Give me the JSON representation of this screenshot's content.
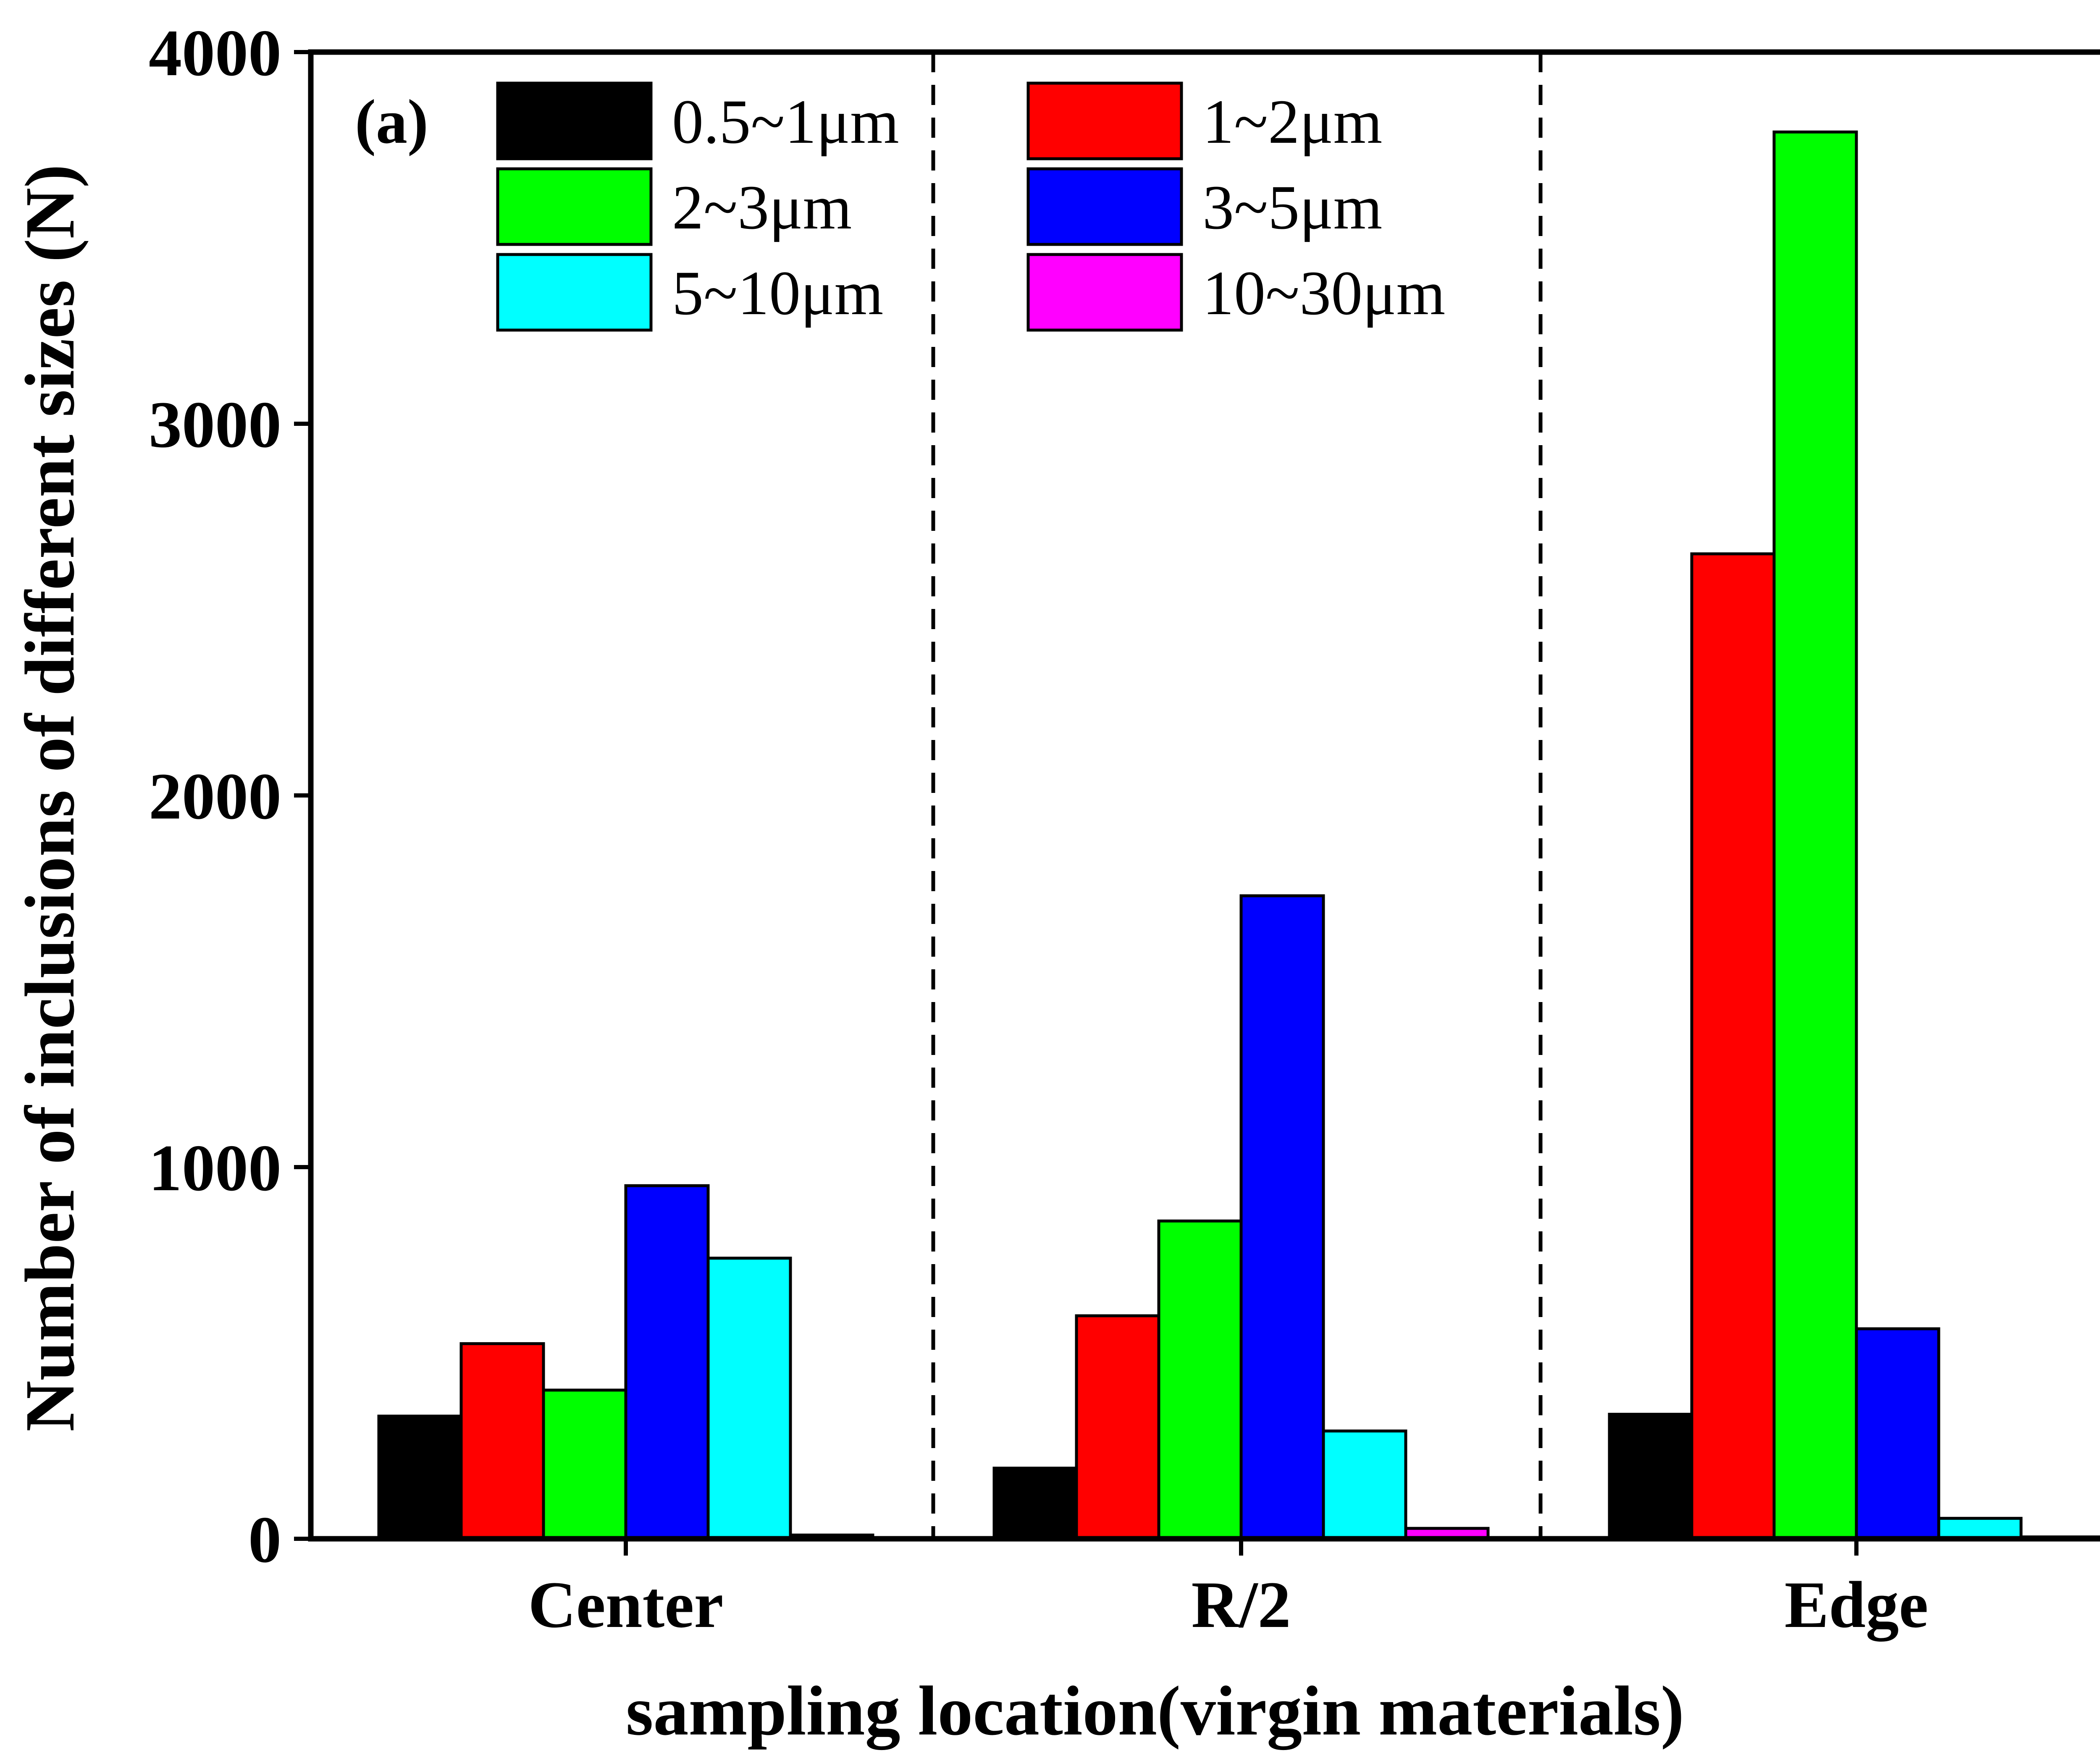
{
  "chart_data": {
    "type": "bar",
    "panel_label": "(a)",
    "xlabel": "sampling location(virgin materials)",
    "ylabel": "Number of inclusions of different sizes (N)",
    "ylim": [
      0,
      4000
    ],
    "yticks": [
      "0",
      "1000",
      "2000",
      "3000",
      "4000"
    ],
    "categories": [
      "Center",
      "R/2",
      "Edge"
    ],
    "legend_position": "top, two columns",
    "group_separators": "dashed vertical lines between groups",
    "series": [
      {
        "name": "0.5~1μm",
        "color": "#000000",
        "values": [
          330,
          190,
          335
        ]
      },
      {
        "name": "1~2μm",
        "color": "#ff0000",
        "values": [
          525,
          600,
          2650
        ]
      },
      {
        "name": "2~3μm",
        "color": "#00ff00",
        "values": [
          400,
          855,
          3785
        ]
      },
      {
        "name": "3~5μm",
        "color": "#0000ff",
        "values": [
          950,
          1730,
          565
        ]
      },
      {
        "name": "5~10μm",
        "color": "#00ffff",
        "values": [
          755,
          290,
          55
        ]
      },
      {
        "name": "10~30μm",
        "color": "#ff00ff",
        "values": [
          10,
          28,
          5
        ]
      }
    ]
  }
}
